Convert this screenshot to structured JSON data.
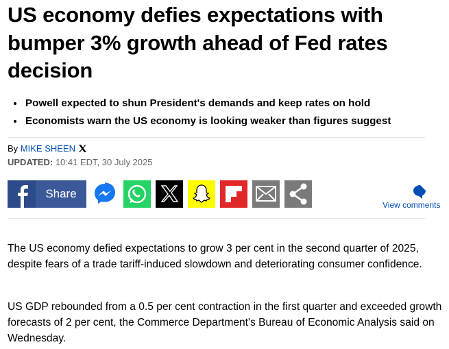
{
  "headline": "US economy defies expectations with bumper 3% growth ahead of Fed rates decision",
  "bullets": [
    "Powell expected to shun President's demands and keep rates on hold",
    "Economists warn the US economy is looking weaker than figures suggest"
  ],
  "byline": {
    "prefix": "By",
    "author": "MIKE SHEEN",
    "updated_label": "UPDATED:",
    "updated": "10:41 EDT, 30 July 2025"
  },
  "share": {
    "label": "Share",
    "comments": "View comments"
  },
  "paragraphs": [
    "The US economy defied expectations to grow 3 per cent in the second quarter of 2025, despite fears of a trade tariff-induced slowdown and deteriorating consumer confidence.",
    "US GDP rebounded from a 0.5 per cent contraction in the first quarter and exceeded growth forecasts of 2 per cent, the Commerce Department's Bureau of Economic Analysis said on Wednesday."
  ]
}
